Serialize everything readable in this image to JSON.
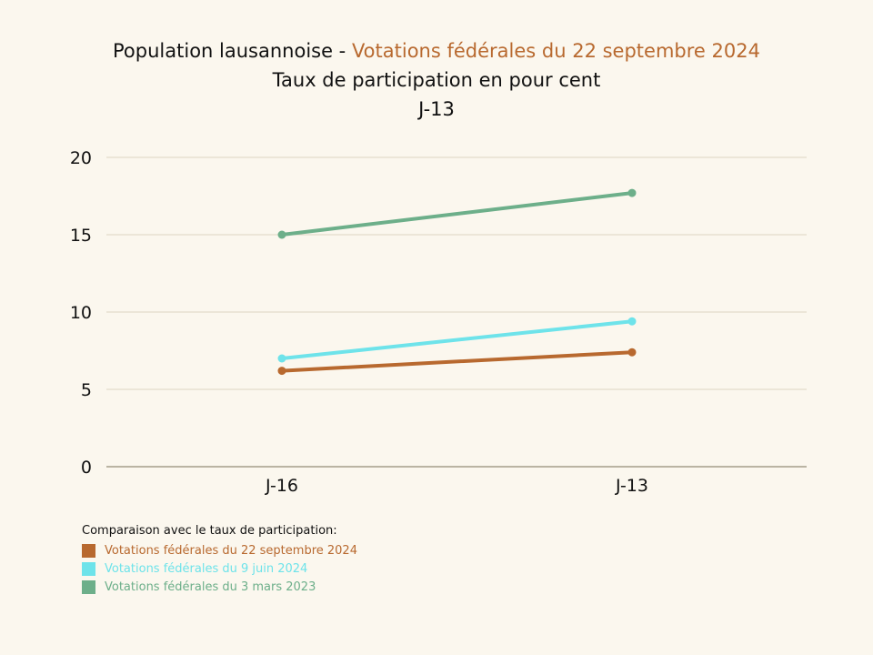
{
  "header": {
    "title_prefix": "Population lausannoise - ",
    "title_highlight": "Votations fédérales du 22 septembre 2024",
    "subtitle": "Taux de participation en pour cent",
    "period": "J-13"
  },
  "colors": {
    "background": "#fbf7ee",
    "accent": "#b8692f",
    "grid": "#dcd5c3",
    "axis": "#a59e8a"
  },
  "chart_data": {
    "type": "line",
    "x": [
      "J-16",
      "J-13"
    ],
    "ylim": [
      0,
      20
    ],
    "yticks": [
      0,
      5,
      10,
      15,
      20
    ],
    "grid": true,
    "legend_position": "bottom-left",
    "series": [
      {
        "name": "Votations fédérales du 22 septembre 2024",
        "color": "#b8692f",
        "values": [
          6.2,
          7.4
        ]
      },
      {
        "name": "Votations fédérales du 9 juin 2024",
        "color": "#6ee3ea",
        "values": [
          7.0,
          9.4
        ]
      },
      {
        "name": "Votations fédérales du 3 mars 2023",
        "color": "#6daf8a",
        "values": [
          15.0,
          17.7
        ]
      }
    ]
  },
  "legend": {
    "title": "Comparaison avec le taux de participation:",
    "items": [
      {
        "label": "Votations fédérales du 22 septembre 2024",
        "color": "#b8692f"
      },
      {
        "label": "Votations fédérales du 9 juin 2024",
        "color": "#6ee3ea"
      },
      {
        "label": "Votations fédérales du 3 mars 2023",
        "color": "#6daf8a"
      }
    ]
  }
}
